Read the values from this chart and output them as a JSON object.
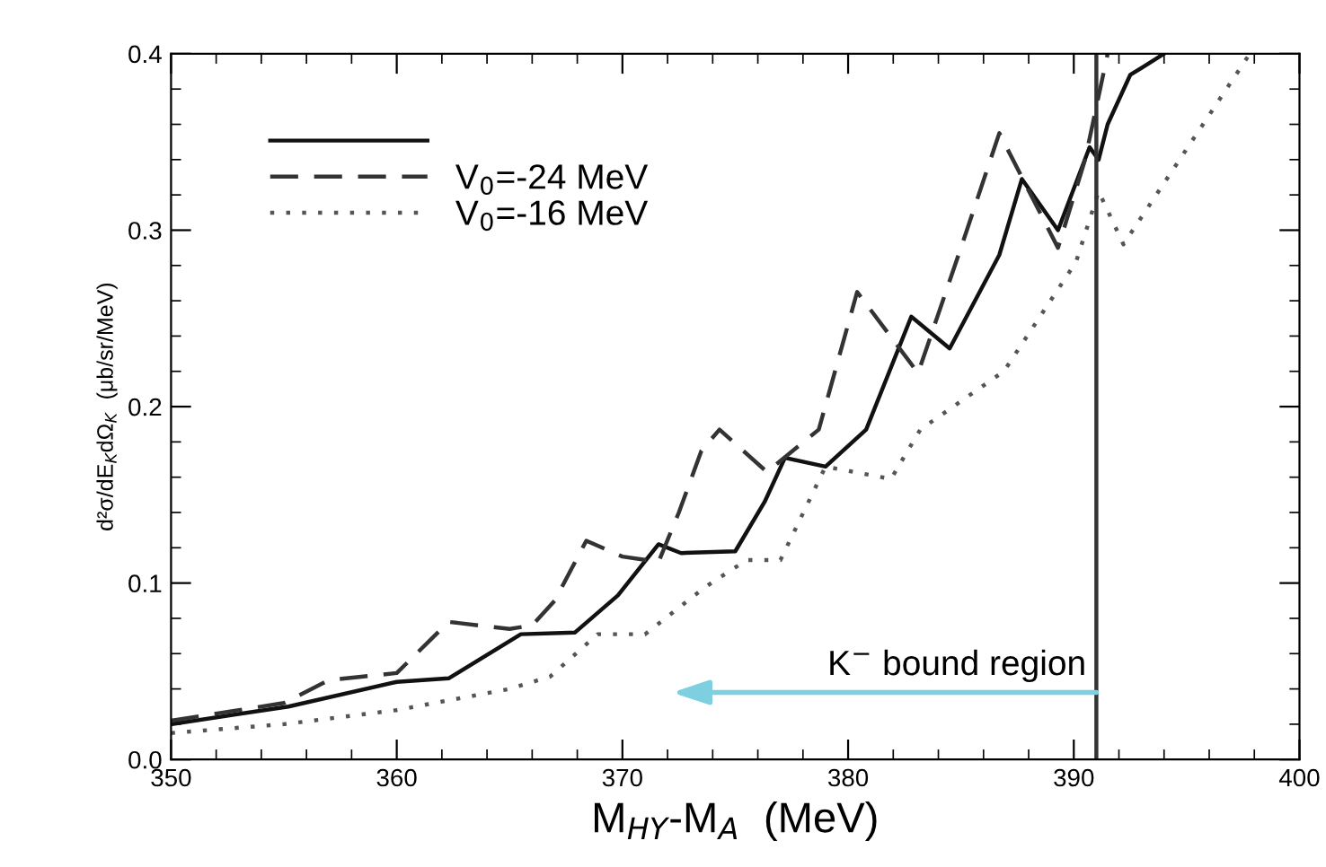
{
  "chart_data": {
    "type": "line",
    "xlabel": "M$_{HY}$-M$_{A}$  (MeV)",
    "ylabel": "d²σ/dE$_{K}$dΩ$_{K}$  (μb/sr/MeV)",
    "xlim": [
      350,
      400
    ],
    "xticks": [
      350,
      360,
      370,
      380,
      390,
      400
    ],
    "ylim": [
      0,
      0.4
    ],
    "yticks": [
      {
        "value": 0,
        "label": "0.0"
      },
      0.1,
      0.2,
      0.3,
      0.4
    ],
    "grid": false,
    "legend": "top left",
    "marker": "none",
    "series": [
      {
        "color": "#111111",
        "line_style": "solid",
        "x": [
          350,
          355.2,
          360,
          362.3,
          365.5,
          367.9,
          369.8,
          371.6,
          372.6,
          375,
          376.3,
          377.2,
          379,
          380.8,
          382.8,
          384.5,
          386.7,
          387.7,
          389.3,
          390.7,
          391.1,
          391.5,
          392.5,
          394
        ],
        "values": [
          0.02,
          0.03,
          0.044,
          0.046,
          0.071,
          0.072,
          0.093,
          0.122,
          0.117,
          0.118,
          0.146,
          0.171,
          0.166,
          0.187,
          0.251,
          0.233,
          0.286,
          0.329,
          0.3,
          0.347,
          0.34,
          0.36,
          0.388,
          0.4
        ]
      },
      {
        "name": "V$_{0}$=-24 MeV",
        "color": "#333333",
        "line_style": "dashed",
        "x": [
          350,
          355,
          357,
          360,
          362.3,
          365,
          366,
          367,
          368.4,
          370,
          371.6,
          372.5,
          373.5,
          374.3,
          376.4,
          378.7,
          380.4,
          383.1,
          385,
          386.7,
          389.3,
          390.5,
          391.5
        ],
        "values": [
          0.022,
          0.032,
          0.045,
          0.049,
          0.078,
          0.074,
          0.076,
          0.09,
          0.124,
          0.115,
          0.112,
          0.14,
          0.175,
          0.187,
          0.163,
          0.187,
          0.265,
          0.219,
          0.29,
          0.355,
          0.29,
          0.34,
          0.4
        ]
      },
      {
        "name": "V$_{0}$=-16 MeV",
        "color": "#555555",
        "line_style": "dotted",
        "x": [
          350,
          355,
          360,
          365,
          366.8,
          368.9,
          371,
          373.7,
          375.5,
          377,
          379,
          381.9,
          383.2,
          386.9,
          390.1,
          391.1,
          392.2,
          397.8
        ],
        "values": [
          0.015,
          0.02,
          0.028,
          0.04,
          0.047,
          0.071,
          0.071,
          0.098,
          0.113,
          0.113,
          0.166,
          0.159,
          0.187,
          0.22,
          0.282,
          0.322,
          0.292,
          0.4
        ]
      }
    ],
    "ref_lines": [
      {
        "axis": "x",
        "value": 391,
        "color": "#333333"
      }
    ],
    "annotations": [
      {
        "text": "K$^{−}$ bound region",
        "x": 391,
        "y": 0.038
      }
    ]
  }
}
